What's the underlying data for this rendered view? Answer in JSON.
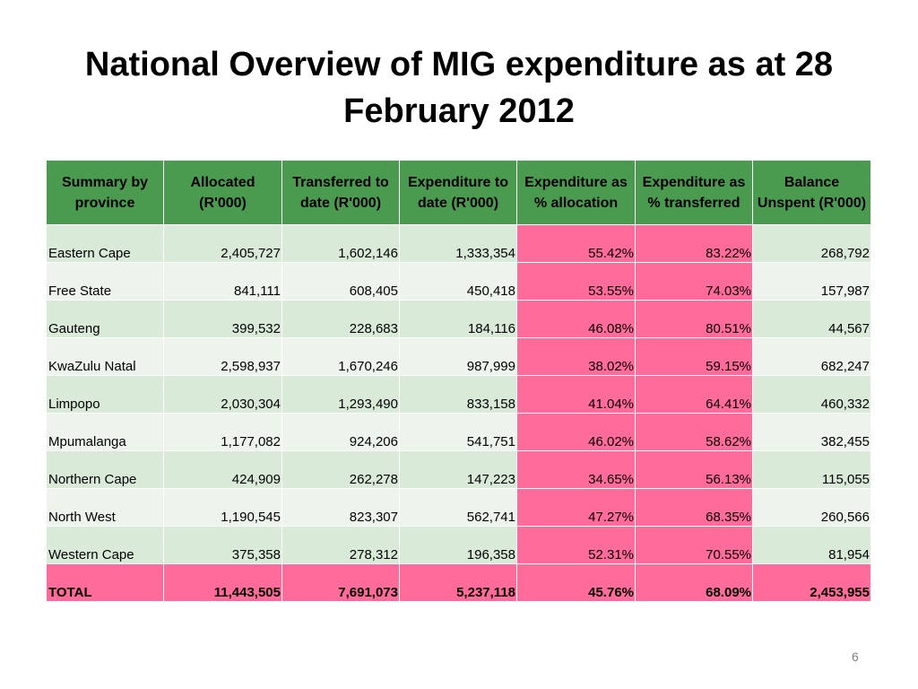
{
  "slide": {
    "title": "National Overview of MIG expenditure as at 28 February 2012",
    "page_number": "6"
  },
  "table": {
    "headers": [
      "Summary by province",
      "Allocated (R'000)",
      "Transferred to date (R'000)",
      "Expenditure to date (R'000)",
      "Expenditure as % allocation",
      "Expenditure as % transferred",
      "Balance Unspent (R'000)"
    ],
    "rows": [
      [
        "Eastern Cape",
        "2,405,727",
        "1,602,146",
        "1,333,354",
        "55.42%",
        "83.22%",
        "268,792"
      ],
      [
        "Free State",
        "841,111",
        "608,405",
        "450,418",
        "53.55%",
        "74.03%",
        "157,987"
      ],
      [
        "Gauteng",
        "399,532",
        "228,683",
        "184,116",
        "46.08%",
        "80.51%",
        "44,567"
      ],
      [
        "KwaZulu Natal",
        "2,598,937",
        "1,670,246",
        "987,999",
        "38.02%",
        "59.15%",
        "682,247"
      ],
      [
        "Limpopo",
        "2,030,304",
        "1,293,490",
        "833,158",
        "41.04%",
        "64.41%",
        "460,332"
      ],
      [
        "Mpumalanga",
        "1,177,082",
        "924,206",
        "541,751",
        "46.02%",
        "58.62%",
        "382,455"
      ],
      [
        "Northern Cape",
        "424,909",
        "262,278",
        "147,223",
        "34.65%",
        "56.13%",
        "115,055"
      ],
      [
        "North West",
        "1,190,545",
        "823,307",
        "562,741",
        "47.27%",
        "68.35%",
        "260,566"
      ],
      [
        "Western Cape",
        "375,358",
        "278,312",
        "196,358",
        "52.31%",
        "70.55%",
        "81,954"
      ]
    ],
    "total": [
      "TOTAL",
      "11,443,505",
      "7,691,073",
      "5,237,118",
      "45.76%",
      "68.09%",
      "2,453,955"
    ]
  },
  "colors": {
    "header_green": "#4a9a4f",
    "row_green_light": "#d9ead9",
    "row_green_lighter": "#ecf4ec",
    "highlight_pink": "#ff6b9a"
  }
}
